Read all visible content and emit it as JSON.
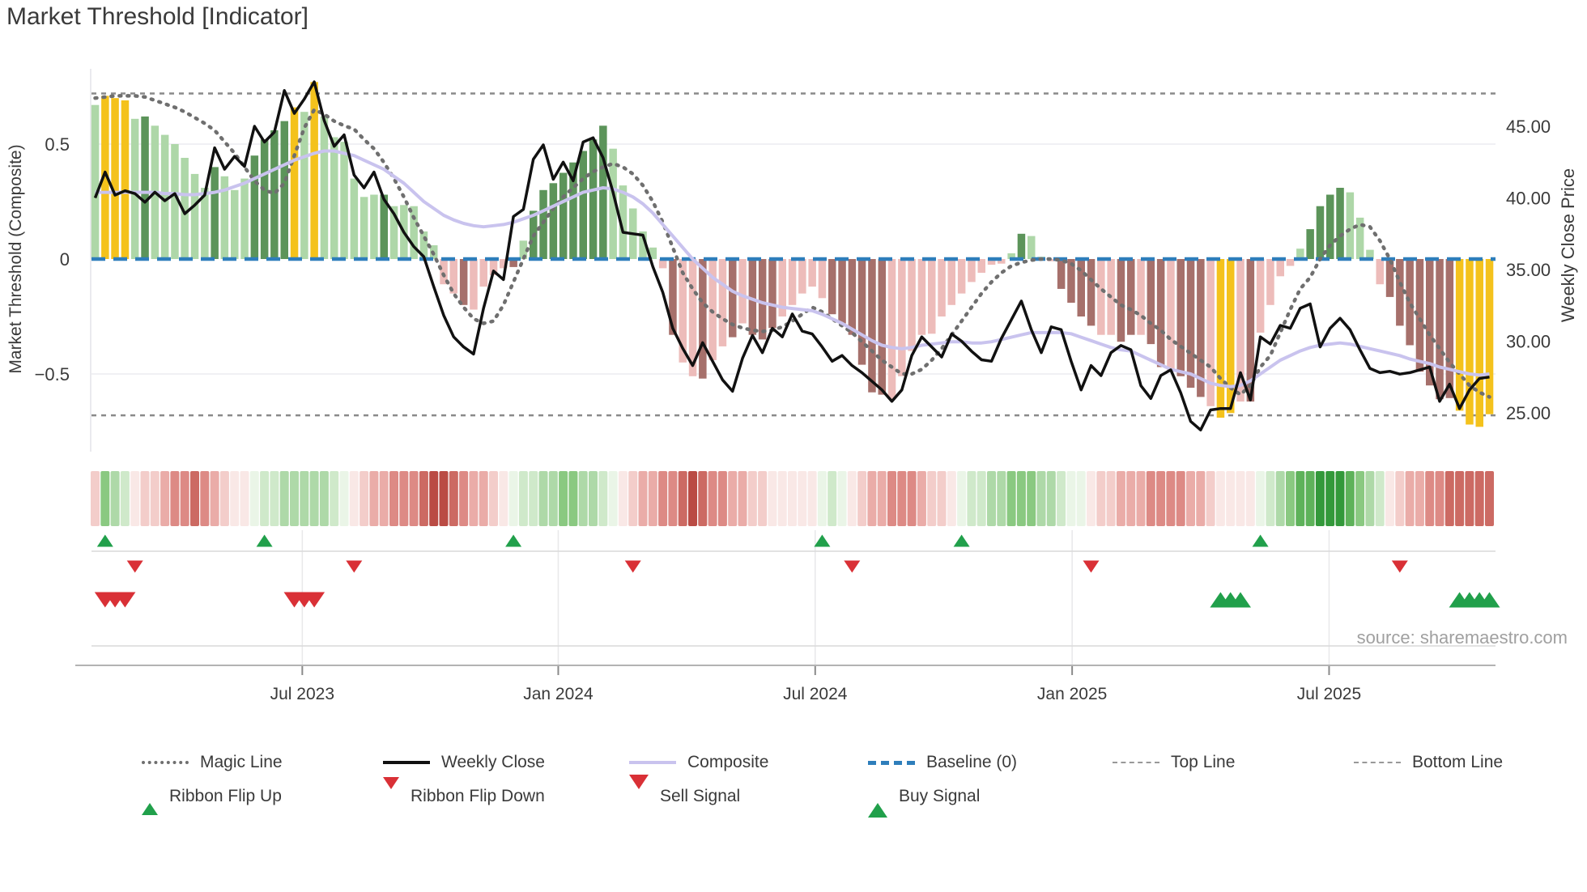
{
  "title": "Market Threshold [Indicator]",
  "source_text": "source: sharemaestro.com",
  "axes": {
    "left_label": "Market Threshold (Composite)",
    "right_label": "Weekly Close Price",
    "left_ticks": [
      {
        "label": "0.5",
        "value": 0.5
      },
      {
        "label": "0",
        "value": 0
      },
      {
        "label": "−0.5",
        "value": -0.5
      }
    ],
    "right_ticks": [
      {
        "label": "45.00",
        "value": 45
      },
      {
        "label": "40.00",
        "value": 40
      },
      {
        "label": "35.00",
        "value": 35
      },
      {
        "label": "30.00",
        "value": 30
      },
      {
        "label": "25.00",
        "value": 25
      }
    ],
    "x_ticks": [
      {
        "label": "Jul 2023",
        "pos": 20.8
      },
      {
        "label": "Jan 2024",
        "pos": 46.5
      },
      {
        "label": "Jul 2024",
        "pos": 72.3
      },
      {
        "label": "Jan 2025",
        "pos": 98.1
      },
      {
        "label": "Jul 2025",
        "pos": 123.9
      }
    ]
  },
  "legend": {
    "row1": [
      {
        "name": "magic-line",
        "label": "Magic Line",
        "swatch": "magic"
      },
      {
        "name": "weekly-close",
        "label": "Weekly Close",
        "swatch": "close"
      },
      {
        "name": "composite",
        "label": "Composite",
        "swatch": "composite"
      },
      {
        "name": "baseline",
        "label": "Baseline (0)",
        "swatch": "baseline"
      },
      {
        "name": "top-line",
        "label": "Top Line",
        "swatch": "thinDash"
      },
      {
        "name": "bottom-line",
        "label": "Bottom Line",
        "swatch": "thinDash"
      }
    ],
    "row2": [
      {
        "name": "ribbon-flip-up",
        "label": "Ribbon Flip Up",
        "swatch": "triUp"
      },
      {
        "name": "ribbon-flip-down",
        "label": "Ribbon Flip Down",
        "swatch": "triDn"
      },
      {
        "name": "sell-signal",
        "label": "Sell Signal",
        "swatch": "triDnBig"
      },
      {
        "name": "buy-signal",
        "label": "Buy Signal",
        "swatch": "triUpBig"
      }
    ]
  },
  "colors": {
    "bar_light_green": "#aed7a8",
    "bar_dark_green": "#5c945a",
    "bar_yellow": "#f4c21c",
    "bar_pink": "#edbcba",
    "bar_brown": "#a6706b",
    "close_line": "#111111",
    "composite_line": "#c9c3ee",
    "magic_line": "#6f6f6f",
    "baseline": "#2e7ebb",
    "top_bottom_line": "#8a8a8a",
    "grid": "#ebebf0",
    "marker_green": "#21a04b",
    "marker_red": "#d93036",
    "axis_text": "#3a3a3a",
    "source_text": "#a0a0a0",
    "ribbon_palette": {
      "g1": "#eaf5e7",
      "g2": "#cfe9ca",
      "g3": "#aed9a8",
      "g4": "#8ac981",
      "g5": "#5eb25a",
      "g6": "#33993a",
      "r1": "#f9e8e6",
      "r2": "#f3cdca",
      "r3": "#eaaca8",
      "r4": "#dd8a85",
      "r5": "#cc6a63",
      "r6": "#ba4b44"
    }
  },
  "chart_data": {
    "type": "composite-indicator",
    "x_unit": "week",
    "x_range_note": "weekly bars Feb 2023 - Nov 2025",
    "left_axis_range": [
      -0.8,
      0.85
    ],
    "right_axis_range": [
      23,
      48.5
    ],
    "top_line_value": 0.72,
    "bottom_line_value": -0.68,
    "baseline_value": 0,
    "bars": {
      "values": [
        0.67,
        0.71,
        0.7,
        0.69,
        0.61,
        0.62,
        0.58,
        0.54,
        0.5,
        0.44,
        0.37,
        0.31,
        0.4,
        0.36,
        0.3,
        0.35,
        0.45,
        0.52,
        0.56,
        0.6,
        0.66,
        0.64,
        0.77,
        0.62,
        0.53,
        0.51,
        0.35,
        0.27,
        0.28,
        0.28,
        0.23,
        0.235,
        0.23,
        0.12,
        0.06,
        -0.11,
        -0.15,
        -0.2,
        -0.22,
        -0.12,
        -0.07,
        -0.04,
        -0.035,
        0.08,
        0.21,
        0.3,
        0.33,
        0.375,
        0.42,
        0.47,
        0.52,
        0.58,
        0.48,
        0.32,
        0.22,
        0.12,
        0.05,
        -0.04,
        -0.33,
        -0.45,
        -0.51,
        -0.52,
        -0.44,
        -0.38,
        -0.34,
        -0.28,
        -0.33,
        -0.35,
        -0.3,
        -0.25,
        -0.2,
        -0.15,
        -0.12,
        -0.17,
        -0.24,
        -0.28,
        -0.33,
        -0.46,
        -0.58,
        -0.59,
        -0.61,
        -0.51,
        -0.4,
        -0.33,
        -0.325,
        -0.25,
        -0.2,
        -0.15,
        -0.1,
        -0.06,
        -0.025,
        -0.02,
        0.025,
        0.11,
        0.1,
        0.01,
        -0.01,
        -0.13,
        -0.19,
        -0.25,
        -0.29,
        -0.33,
        -0.33,
        -0.36,
        -0.33,
        -0.33,
        -0.37,
        -0.47,
        -0.49,
        -0.51,
        -0.56,
        -0.6,
        -0.64,
        -0.69,
        -0.67,
        -0.62,
        -0.62,
        -0.32,
        -0.2,
        -0.075,
        -0.03,
        0.045,
        0.13,
        0.23,
        0.28,
        0.31,
        0.29,
        0.18,
        0.04,
        -0.11,
        -0.165,
        -0.29,
        -0.375,
        -0.49,
        -0.55,
        -0.61,
        -0.605,
        -0.66,
        -0.72,
        -0.73,
        -0.675
      ],
      "colors": [
        "lg",
        "y",
        "y",
        "y",
        "lg",
        "dg",
        "lg",
        "lg",
        "lg",
        "lg",
        "lg",
        "lg",
        "dg",
        "lg",
        "lg",
        "lg",
        "dg",
        "dg",
        "dg",
        "dg",
        "y",
        "lg",
        "y",
        "lg",
        "lg",
        "lg",
        "lg",
        "lg",
        "lg",
        "dg",
        "lg",
        "lg",
        "lg",
        "lg",
        "lg",
        "lr",
        "lr",
        "dr",
        "lr",
        "lr",
        "lr",
        "lr",
        "dr",
        "lg",
        "dg",
        "dg",
        "dg",
        "dg",
        "dg",
        "dg",
        "dg",
        "dg",
        "lg",
        "lg",
        "lg",
        "lg",
        "lg",
        "lr",
        "dr",
        "lr",
        "lr",
        "dr",
        "lr",
        "lr",
        "dr",
        "lr",
        "dr",
        "dr",
        "dr",
        "lr",
        "lr",
        "lr",
        "lr",
        "lr",
        "dr",
        "dr",
        "dr",
        "dr",
        "dr",
        "dr",
        "lr",
        "lr",
        "lr",
        "lr",
        "lr",
        "lr",
        "lr",
        "lr",
        "lr",
        "lr",
        "lr",
        "lr",
        "lg",
        "dg",
        "lg",
        "lg",
        "lr",
        "dr",
        "dr",
        "dr",
        "dr",
        "lr",
        "lr",
        "dr",
        "dr",
        "lr",
        "dr",
        "dr",
        "lr",
        "dr",
        "dr",
        "dr",
        "lr",
        "y",
        "y",
        "lr",
        "dr",
        "lr",
        "lr",
        "lr",
        "lr",
        "lg",
        "dg",
        "dg",
        "dg",
        "dg",
        "lg",
        "lg",
        "lg",
        "lr",
        "dr",
        "dr",
        "dr",
        "dr",
        "dr",
        "dr",
        "dr",
        "y",
        "y",
        "y",
        "y"
      ]
    },
    "weekly_close": [
      40.0,
      41.8,
      40.2,
      40.5,
      40.3,
      39.7,
      40.4,
      39.8,
      40.3,
      38.9,
      39.5,
      40.2,
      43.5,
      42.0,
      42.9,
      42.2,
      45.0,
      43.9,
      44.6,
      47.5,
      45.9,
      46.9,
      48.1,
      45.4,
      43.6,
      44.4,
      41.6,
      40.7,
      41.8,
      39.9,
      38.9,
      37.6,
      36.6,
      35.9,
      33.8,
      31.8,
      30.3,
      29.6,
      29.1,
      32.3,
      34.9,
      34.3,
      38.7,
      39.2,
      42.7,
      43.7,
      41.3,
      42.5,
      41.2,
      43.9,
      44.2,
      42.8,
      40.4,
      37.6,
      37.5,
      37.4,
      35.2,
      33.4,
      30.9,
      29.5,
      28.3,
      29.9,
      28.6,
      27.3,
      26.5,
      28.8,
      30.4,
      29.2,
      30.9,
      30.3,
      31.9,
      30.7,
      30.5,
      29.6,
      28.6,
      29.0,
      28.3,
      27.8,
      27.2,
      26.6,
      25.8,
      26.6,
      29.0,
      30.3,
      29.6,
      28.9,
      30.5,
      30.0,
      29.3,
      28.7,
      28.6,
      30.2,
      31.5,
      32.8,
      30.8,
      29.2,
      31.0,
      30.8,
      28.6,
      26.6,
      28.3,
      27.6,
      29.2,
      29.7,
      29.4,
      26.9,
      26.0,
      27.6,
      28.0,
      26.4,
      24.4,
      23.8,
      25.2,
      25.3,
      25.3,
      27.8,
      25.9,
      30.3,
      29.8,
      31.1,
      30.9,
      32.3,
      32.6,
      29.6,
      30.9,
      31.6,
      30.8,
      29.4,
      28.1,
      27.8,
      27.9,
      27.7,
      27.8,
      28.0,
      28.2,
      25.8,
      27.0,
      25.3,
      26.6,
      27.4,
      27.5
    ],
    "composite": [
      0.29,
      0.29,
      0.29,
      0.29,
      0.29,
      0.29,
      0.29,
      0.285,
      0.285,
      0.28,
      0.28,
      0.285,
      0.29,
      0.3,
      0.315,
      0.33,
      0.35,
      0.37,
      0.39,
      0.41,
      0.43,
      0.445,
      0.46,
      0.47,
      0.47,
      0.46,
      0.45,
      0.43,
      0.41,
      0.39,
      0.36,
      0.33,
      0.29,
      0.25,
      0.22,
      0.19,
      0.17,
      0.155,
      0.145,
      0.14,
      0.145,
      0.15,
      0.16,
      0.175,
      0.19,
      0.21,
      0.23,
      0.25,
      0.27,
      0.29,
      0.3,
      0.31,
      0.305,
      0.29,
      0.27,
      0.24,
      0.2,
      0.15,
      0.1,
      0.05,
      0.0,
      -0.04,
      -0.08,
      -0.11,
      -0.14,
      -0.16,
      -0.175,
      -0.19,
      -0.2,
      -0.21,
      -0.215,
      -0.22,
      -0.225,
      -0.24,
      -0.26,
      -0.28,
      -0.305,
      -0.33,
      -0.355,
      -0.375,
      -0.385,
      -0.39,
      -0.385,
      -0.375,
      -0.37,
      -0.365,
      -0.36,
      -0.36,
      -0.365,
      -0.365,
      -0.36,
      -0.35,
      -0.34,
      -0.33,
      -0.32,
      -0.32,
      -0.32,
      -0.32,
      -0.325,
      -0.34,
      -0.355,
      -0.37,
      -0.385,
      -0.395,
      -0.4,
      -0.42,
      -0.44,
      -0.46,
      -0.48,
      -0.49,
      -0.5,
      -0.52,
      -0.54,
      -0.55,
      -0.555,
      -0.55,
      -0.53,
      -0.5,
      -0.47,
      -0.44,
      -0.42,
      -0.4,
      -0.385,
      -0.375,
      -0.37,
      -0.365,
      -0.37,
      -0.38,
      -0.39,
      -0.4,
      -0.41,
      -0.42,
      -0.435,
      -0.445,
      -0.455,
      -0.47,
      -0.48,
      -0.49,
      -0.5,
      -0.505,
      -0.5
    ],
    "magic_line": [
      0.7,
      0.705,
      0.71,
      0.71,
      0.71,
      0.705,
      0.69,
      0.675,
      0.66,
      0.64,
      0.615,
      0.59,
      0.56,
      0.51,
      0.46,
      0.4,
      0.34,
      0.3,
      0.285,
      0.33,
      0.45,
      0.57,
      0.65,
      0.63,
      0.6,
      0.58,
      0.565,
      0.52,
      0.48,
      0.42,
      0.35,
      0.27,
      0.18,
      0.1,
      0.02,
      -0.07,
      -0.15,
      -0.21,
      -0.26,
      -0.28,
      -0.27,
      -0.2,
      -0.1,
      0.0,
      0.1,
      0.16,
      0.22,
      0.27,
      0.31,
      0.35,
      0.38,
      0.4,
      0.415,
      0.4,
      0.37,
      0.32,
      0.25,
      0.16,
      0.05,
      -0.06,
      -0.13,
      -0.19,
      -0.23,
      -0.26,
      -0.285,
      -0.3,
      -0.31,
      -0.315,
      -0.31,
      -0.295,
      -0.27,
      -0.24,
      -0.21,
      -0.23,
      -0.26,
      -0.29,
      -0.32,
      -0.36,
      -0.4,
      -0.44,
      -0.47,
      -0.5,
      -0.5,
      -0.48,
      -0.44,
      -0.39,
      -0.33,
      -0.27,
      -0.21,
      -0.15,
      -0.1,
      -0.06,
      -0.03,
      -0.015,
      -0.005,
      0.0,
      0.0,
      -0.005,
      -0.02,
      -0.05,
      -0.09,
      -0.13,
      -0.165,
      -0.2,
      -0.22,
      -0.245,
      -0.28,
      -0.31,
      -0.35,
      -0.38,
      -0.41,
      -0.44,
      -0.47,
      -0.52,
      -0.56,
      -0.59,
      -0.55,
      -0.47,
      -0.42,
      -0.32,
      -0.22,
      -0.13,
      -0.08,
      0.0,
      0.06,
      0.1,
      0.13,
      0.15,
      0.14,
      0.08,
      0.0,
      -0.1,
      -0.19,
      -0.26,
      -0.33,
      -0.39,
      -0.45,
      -0.5,
      -0.55,
      -0.58,
      -0.6
    ],
    "ribbon": [
      "r2",
      "g4",
      "g3",
      "g2",
      "r1",
      "r2",
      "r2",
      "r3",
      "r4",
      "r4",
      "r5",
      "r4",
      "r3",
      "r2",
      "r1",
      "r1",
      "g1",
      "g2",
      "g2",
      "g3",
      "g3",
      "g3",
      "g3",
      "g3",
      "g2",
      "g1",
      "r1",
      "r2",
      "r3",
      "r3",
      "r4",
      "r4",
      "r4",
      "r5",
      "r6",
      "r6",
      "r5",
      "r4",
      "r3",
      "r3",
      "r2",
      "r1",
      "g1",
      "g2",
      "g2",
      "g3",
      "g3",
      "g4",
      "g4",
      "g3",
      "g3",
      "g2",
      "g1",
      "r1",
      "r2",
      "r3",
      "r3",
      "r4",
      "r4",
      "r5",
      "r6",
      "r5",
      "r4",
      "r4",
      "r3",
      "r3",
      "r2",
      "r2",
      "r1",
      "r1",
      "r1",
      "r1",
      "r1",
      "g1",
      "g2",
      "g1",
      "r1",
      "r2",
      "r3",
      "r3",
      "r4",
      "r4",
      "r4",
      "r3",
      "r2",
      "r2",
      "r1",
      "g1",
      "g2",
      "g2",
      "g3",
      "g3",
      "g4",
      "g4",
      "g4",
      "g3",
      "g3",
      "g2",
      "g1",
      "g1",
      "r1",
      "r2",
      "r2",
      "r3",
      "r3",
      "r3",
      "r4",
      "r4",
      "r4",
      "r4",
      "r3",
      "r3",
      "r2",
      "r1",
      "r1",
      "r1",
      "r1",
      "g1",
      "g2",
      "g3",
      "g4",
      "g5",
      "g5",
      "g6",
      "g6",
      "g6",
      "g5",
      "g4",
      "g3",
      "g2",
      "r1",
      "r2",
      "r3",
      "r3",
      "r4",
      "r4",
      "r5",
      "r5",
      "r5",
      "r5",
      "r5"
    ],
    "markers": {
      "ribbon_flip_up_weeks": [
        1,
        17,
        42,
        73,
        87,
        117
      ],
      "ribbon_flip_down_weeks": [
        4,
        26,
        54,
        76,
        100,
        131
      ],
      "sell_signal_weeks": [
        1,
        2,
        3,
        20,
        21,
        22
      ],
      "buy_signal_weeks": [
        113,
        114,
        115,
        137,
        138,
        139,
        140
      ]
    }
  }
}
